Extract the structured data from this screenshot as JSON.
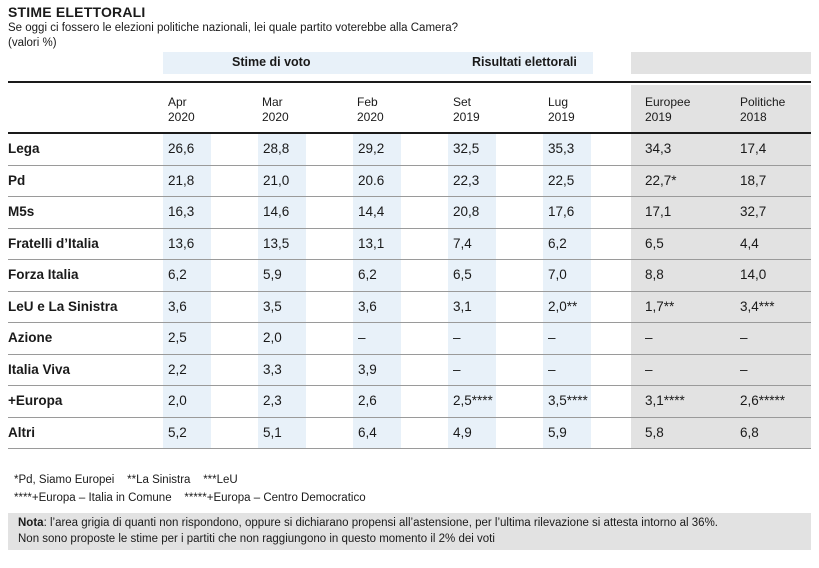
{
  "title": "STIME ELETTORALI",
  "subtitle": "Se oggi ci fossero le elezioni politiche nazionali, lei quale partito voterebbe alla Camera?",
  "units": "(valori %)",
  "groups": {
    "stime": "Stime di voto",
    "risultati": "Risultati elettorali"
  },
  "columns": [
    {
      "month": "Apr",
      "year": "2020"
    },
    {
      "month": "Mar",
      "year": "2020"
    },
    {
      "month": "Feb",
      "year": "2020"
    },
    {
      "month": "Set",
      "year": "2019"
    },
    {
      "month": "Lug",
      "year": "2019"
    },
    {
      "month": "Europee",
      "year": "2019"
    },
    {
      "month": "Politiche",
      "year": "2018"
    }
  ],
  "rows": [
    {
      "party": "Lega",
      "values": [
        "26,6",
        "28,8",
        "29,2",
        "32,5",
        "35,3",
        "34,3",
        "17,4"
      ]
    },
    {
      "party": "Pd",
      "values": [
        "21,8",
        "21,0",
        "20.6",
        "22,3",
        "22,5",
        "22,7*",
        "18,7"
      ]
    },
    {
      "party": "M5s",
      "values": [
        "16,3",
        "14,6",
        "14,4",
        "20,8",
        "17,6",
        "17,1",
        "32,7"
      ]
    },
    {
      "party": "Fratelli d’Italia",
      "values": [
        "13,6",
        "13,5",
        "13,1",
        "7,4",
        "6,2",
        "6,5",
        "4,4"
      ]
    },
    {
      "party": "Forza Italia",
      "values": [
        "6,2",
        "5,9",
        "6,2",
        "6,5",
        "7,0",
        "8,8",
        "14,0"
      ]
    },
    {
      "party": "LeU e La Sinistra",
      "values": [
        "3,6",
        "3,5",
        "3,6",
        "3,1",
        "2,0**",
        "1,7**",
        "3,4***"
      ]
    },
    {
      "party": "Azione",
      "values": [
        "2,5",
        "2,0",
        "–",
        "–",
        "–",
        "–",
        "–"
      ]
    },
    {
      "party": "Italia Viva",
      "values": [
        "2,2",
        "3,3",
        "3,9",
        "–",
        "–",
        "–",
        "–"
      ]
    },
    {
      "party": "+Europa",
      "values": [
        "2,0",
        "2,3",
        "2,6",
        "2,5****",
        "3,5****",
        "3,1****",
        "2,6*****"
      ]
    },
    {
      "party": "Altri",
      "values": [
        "5,2",
        "5,1",
        "6,4",
        "4,9",
        "5,9",
        "5,8",
        "6,8"
      ]
    }
  ],
  "footnotes": {
    "line1": "*Pd, Siamo Europei    **La Sinistra    ***LeU",
    "line2": "****+Europa – Italia in Comune    *****+Europa – Centro Democratico"
  },
  "note": {
    "label": "Nota",
    "line1": ": l’area grigia di quanti non rispondono, oppure si dichiarano propensi all’astensione, per l’ultima rilevazione si attesta intorno al 36%.",
    "line2": "Non sono proposte le stime per i partiti che non raggiungono in questo momento il 2% dei voti"
  },
  "colors": {
    "blue_band": "#e8f1f9",
    "gray_band": "#e2e2e2",
    "text": "#1a1a1a"
  }
}
